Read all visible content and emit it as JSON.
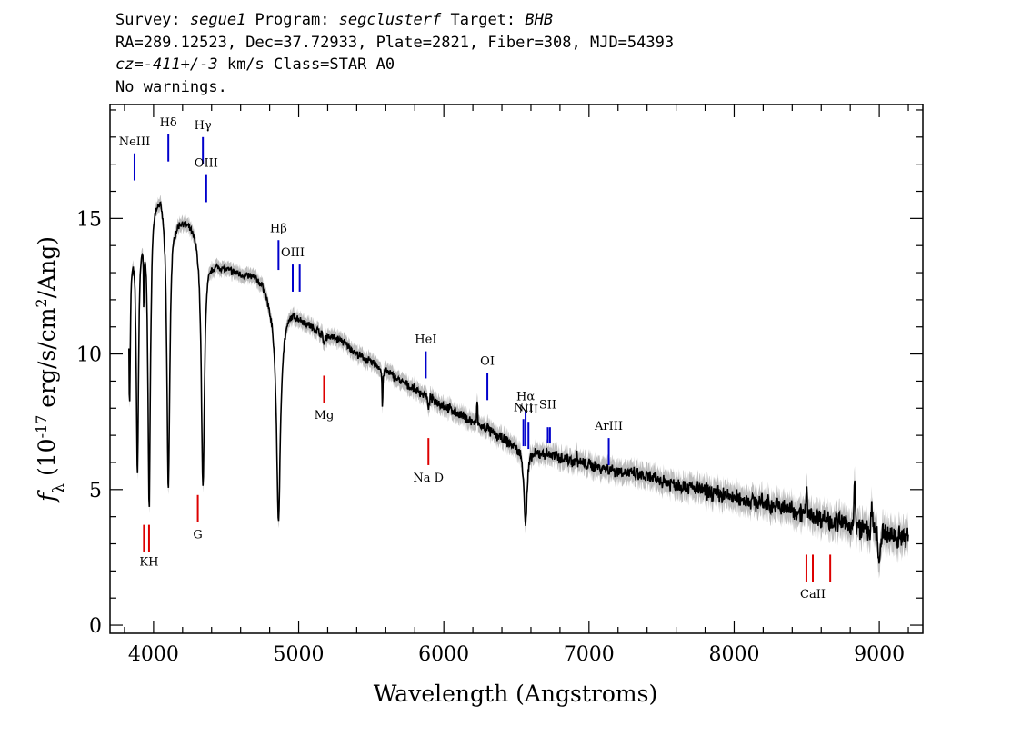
{
  "header": {
    "line1": {
      "survey_label": "Survey: ",
      "survey": "segue1",
      "program_label": " Program: ",
      "program": "segclusterf",
      "target_label": " Target: ",
      "target": "BHB"
    },
    "line2": "RA=289.12523, Dec=37.72933, Plate=2821, Fiber=308, MJD=54393",
    "line3": {
      "cz": "cz=-411+/-3",
      "rest": " km/s Class=STAR A0"
    },
    "line4": "No warnings."
  },
  "chart_data": {
    "type": "line",
    "title": "",
    "xlabel": "Wavelength (Angstroms)",
    "ylabel_prefix": "f",
    "ylabel_sub": "λ",
    "ylabel_main": " (10",
    "ylabel_exp": "-17",
    "ylabel_units": " erg/s/cm",
    "ylabel_exp2": "2",
    "ylabel_tail": "/Ang)",
    "xlim": [
      3700,
      9300
    ],
    "ylim": [
      -0.3,
      19.2
    ],
    "xticks": [
      4000,
      5000,
      6000,
      7000,
      8000,
      9000
    ],
    "yticks": [
      0,
      5,
      10,
      15
    ],
    "continuum": [
      [
        3830,
        13.8
      ],
      [
        3870,
        14.5
      ],
      [
        3920,
        15.0
      ],
      [
        3970,
        15.5
      ],
      [
        4000,
        16.0
      ],
      [
        4050,
        16.2
      ],
      [
        4100,
        15.6
      ],
      [
        4150,
        15.1
      ],
      [
        4200,
        15.1
      ],
      [
        4250,
        14.9
      ],
      [
        4300,
        14.6
      ],
      [
        4350,
        14.0
      ],
      [
        4400,
        13.5
      ],
      [
        4500,
        13.2
      ],
      [
        4600,
        13.0
      ],
      [
        4700,
        12.9
      ],
      [
        4760,
        12.6
      ],
      [
        4800,
        12.0
      ],
      [
        4860,
        11.3
      ],
      [
        4900,
        11.4
      ],
      [
        4950,
        11.6
      ],
      [
        5000,
        11.4
      ],
      [
        5100,
        11.0
      ],
      [
        5200,
        10.7
      ],
      [
        5300,
        10.5
      ],
      [
        5400,
        10.0
      ],
      [
        5500,
        9.7
      ],
      [
        5600,
        9.4
      ],
      [
        5700,
        9.0
      ],
      [
        5800,
        8.7
      ],
      [
        5900,
        8.4
      ],
      [
        6000,
        8.1
      ],
      [
        6100,
        7.8
      ],
      [
        6200,
        7.5
      ],
      [
        6300,
        7.2
      ],
      [
        6400,
        6.9
      ],
      [
        6500,
        6.6
      ],
      [
        6600,
        6.4
      ],
      [
        6700,
        6.35
      ],
      [
        6800,
        6.2
      ],
      [
        6900,
        6.05
      ],
      [
        7000,
        5.9
      ],
      [
        7200,
        5.7
      ],
      [
        7400,
        5.45
      ],
      [
        7600,
        5.2
      ],
      [
        7800,
        4.95
      ],
      [
        8000,
        4.7
      ],
      [
        8200,
        4.5
      ],
      [
        8400,
        4.25
      ],
      [
        8600,
        3.95
      ],
      [
        8800,
        3.7
      ],
      [
        9000,
        3.4
      ],
      [
        9200,
        3.2
      ]
    ],
    "absorption": [
      {
        "center": 3835,
        "depth": 5.5,
        "width": 6
      },
      {
        "center": 3889,
        "depth": 9.0,
        "width": 9
      },
      {
        "center": 3933,
        "depth": 2.5,
        "width": 3
      },
      {
        "center": 3970,
        "depth": 11.0,
        "width": 10
      },
      {
        "center": 4102,
        "depth": 10.5,
        "width": 12
      },
      {
        "center": 4340,
        "depth": 9.0,
        "width": 13
      },
      {
        "center": 4861,
        "depth": 7.4,
        "width": 16
      },
      {
        "center": 5175,
        "depth": 0.4,
        "width": 8
      },
      {
        "center": 5577,
        "depth": 1.5,
        "width": 3
      },
      {
        "center": 5893,
        "depth": 0.7,
        "width": 3
      },
      {
        "center": 6563,
        "depth": 2.8,
        "width": 12
      },
      {
        "center": 9000,
        "depth": 1.4,
        "width": 6
      }
    ],
    "emission": [
      {
        "center": 6230,
        "height": 0.9,
        "width": 4
      },
      {
        "center": 6300,
        "height": 0.4,
        "width": 3
      },
      {
        "center": 6915,
        "height": 0.5,
        "width": 3
      },
      {
        "center": 8500,
        "height": 0.8,
        "width": 6
      },
      {
        "center": 8830,
        "height": 1.5,
        "width": 6
      },
      {
        "center": 8950,
        "height": 0.7,
        "width": 8
      }
    ],
    "noise": {
      "amplitude_blue": 0.1,
      "amplitude_red": 0.35,
      "seed": 7
    },
    "colors": {
      "spectrum": "#000000",
      "error": "#bdbdbd",
      "emission_line": "#0000cc",
      "absorption_line": "#dd0000"
    },
    "emission_markers": [
      {
        "label": "NeIII",
        "wave": 3869,
        "y_top": 17.4,
        "y_bottom": 16.4,
        "label_y": 17.7
      },
      {
        "label": "Hδ",
        "wave": 4102,
        "y_top": 18.1,
        "y_bottom": 17.1,
        "label_y": 18.4
      },
      {
        "label": "Hγ",
        "wave": 4340,
        "y_top": 18.0,
        "y_bottom": 17.0,
        "label_y": 18.3
      },
      {
        "label": "OIII",
        "wave": 4363,
        "y_top": 16.6,
        "y_bottom": 15.6,
        "label_y": 16.9
      },
      {
        "label": "Hβ",
        "wave": 4861,
        "y_top": 14.2,
        "y_bottom": 13.1,
        "label_y": 14.5
      },
      {
        "label": "OIII",
        "wave": 4959,
        "y_top": 13.3,
        "y_bottom": 12.3,
        "label_y": 13.6
      },
      {
        "label": "",
        "wave": 5007,
        "y_top": 13.3,
        "y_bottom": 12.3,
        "label_y": 13.6
      },
      {
        "label": "HeI",
        "wave": 5876,
        "y_top": 10.1,
        "y_bottom": 9.1,
        "label_y": 10.4
      },
      {
        "label": "OI",
        "wave": 6300,
        "y_top": 9.3,
        "y_bottom": 8.3,
        "label_y": 9.6
      },
      {
        "label": "NII",
        "wave": 6548,
        "y_top": 7.6,
        "y_bottom": 6.6,
        "label_y": 7.9
      },
      {
        "label": "Hα",
        "wave": 6563,
        "y_top": 7.9,
        "y_bottom": 6.6,
        "label_y": 8.3
      },
      {
        "label": "NII",
        "wave": 6583,
        "y_top": 7.5,
        "y_bottom": 6.5,
        "label_y": 7.8
      },
      {
        "label": "SII",
        "wave": 6716,
        "y_top": 7.3,
        "y_bottom": 6.7,
        "label_y": 8.0
      },
      {
        "label": "",
        "wave": 6731,
        "y_top": 7.3,
        "y_bottom": 6.7,
        "label_y": 8.0
      },
      {
        "label": "ArIII",
        "wave": 7136,
        "y_top": 6.9,
        "y_bottom": 5.9,
        "label_y": 7.2
      }
    ],
    "absorption_markers": [
      {
        "label": "",
        "wave": 3934,
        "y_top": 3.7,
        "y_bottom": 2.7,
        "label_y": 2.2
      },
      {
        "label": "KH",
        "wave": 3969,
        "y_top": 3.7,
        "y_bottom": 2.7,
        "label_y": 2.2
      },
      {
        "label": "G",
        "wave": 4305,
        "y_top": 4.8,
        "y_bottom": 3.8,
        "label_y": 3.2
      },
      {
        "label": "Mg",
        "wave": 5175,
        "y_top": 9.2,
        "y_bottom": 8.2,
        "label_y": 7.6
      },
      {
        "label": "Na D",
        "wave": 5894,
        "y_top": 6.9,
        "y_bottom": 5.9,
        "label_y": 5.3
      },
      {
        "label": "",
        "wave": 8498,
        "y_top": 2.6,
        "y_bottom": 1.6,
        "label_y": 1.0
      },
      {
        "label": "CaII",
        "wave": 8542,
        "y_top": 2.6,
        "y_bottom": 1.6,
        "label_y": 1.0
      },
      {
        "label": "",
        "wave": 8662,
        "y_top": 2.6,
        "y_bottom": 1.6,
        "label_y": 1.0
      }
    ]
  }
}
